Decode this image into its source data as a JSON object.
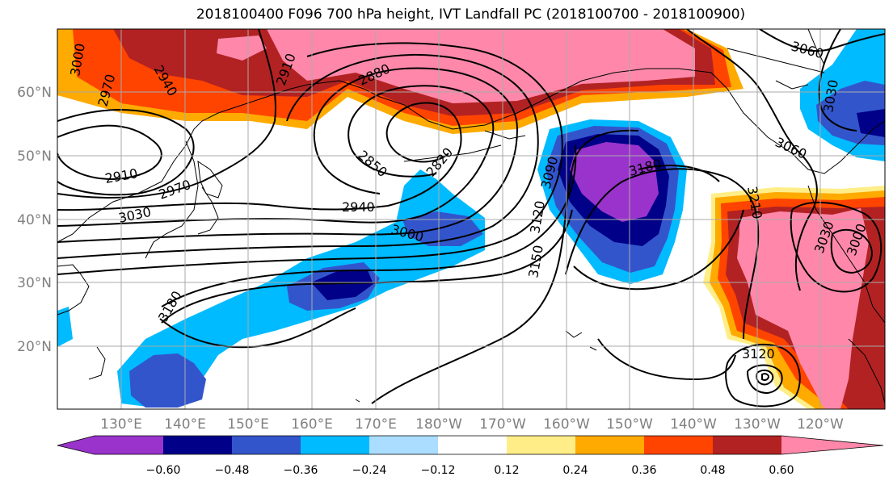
{
  "title": "2018100400 F096 700 hPa height, IVT Landfall PC (2018100700 - 2018100900)",
  "map": {
    "lat_labels": [
      "60°N",
      "50°N",
      "40°N",
      "30°N",
      "20°N"
    ],
    "lon_labels": [
      "130°E",
      "140°E",
      "150°E",
      "160°E",
      "170°E",
      "180°W",
      "170°W",
      "160°W",
      "150°W",
      "140°W",
      "130°W",
      "120°W"
    ],
    "grid": true,
    "contour_labels": [
      "3000",
      "2970",
      "2940",
      "2910",
      "2880",
      "2910",
      "2970",
      "3030",
      "2850",
      "2820",
      "2940",
      "3000",
      "3090",
      "3120",
      "3150",
      "3180",
      "3180",
      "3060",
      "3060",
      "3030",
      "3210",
      "3030",
      "3000",
      "3120"
    ],
    "shading_variable": "IVT Landfall PC",
    "contour_variable": "700 hPa height"
  },
  "colorbar": {
    "tick_labels": [
      "−0.60",
      "−0.48",
      "−0.36",
      "−0.24",
      "−0.12",
      "0.12",
      "0.24",
      "0.36",
      "0.48",
      "0.60"
    ],
    "colors": [
      "#9933cc",
      "#000088",
      "#3355cc",
      "#00bbff",
      "#aaddff",
      "#ffffff",
      "#ffee88",
      "#ffaa00",
      "#ff4400",
      "#b22222",
      "#ff88aa"
    ]
  }
}
